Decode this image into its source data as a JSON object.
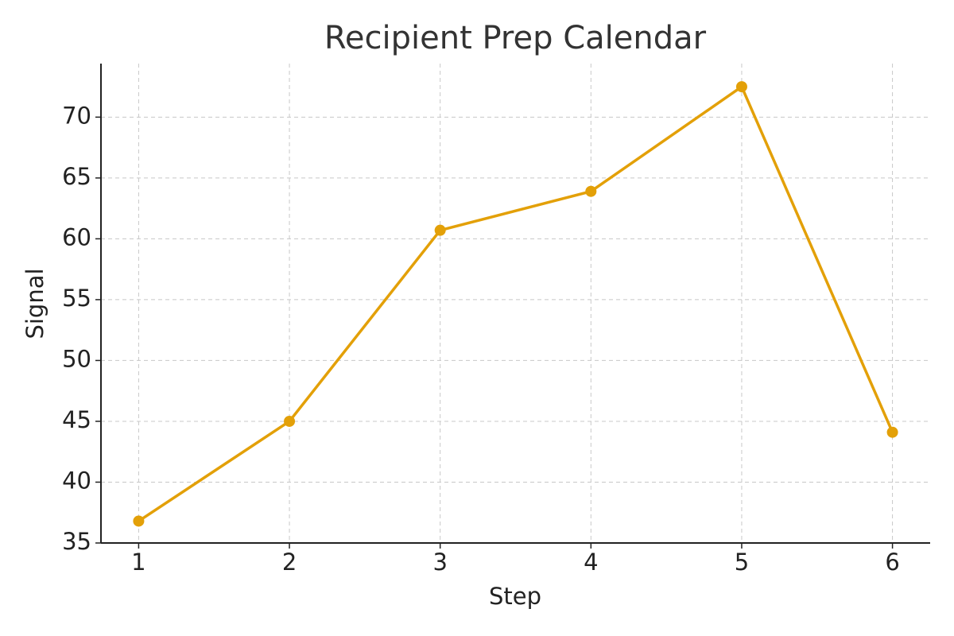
{
  "chart_data": {
    "type": "line",
    "title": "Recipient Prep Calendar",
    "x_label": "Step",
    "y_label": "Signal",
    "x": [
      1,
      2,
      3,
      4,
      5,
      6
    ],
    "series": [
      {
        "name": "Signal",
        "color": "#e3a008",
        "values": [
          36.8,
          45.0,
          60.7,
          63.9,
          72.5,
          44.1
        ]
      }
    ],
    "xlim": [
      0.75,
      6.25
    ],
    "xticks": [
      1,
      2,
      3,
      4,
      5,
      6
    ],
    "ylim": [
      35,
      74.4
    ],
    "yticks": [
      35,
      40,
      45,
      50,
      55,
      60,
      65,
      70
    ],
    "grid": true
  }
}
